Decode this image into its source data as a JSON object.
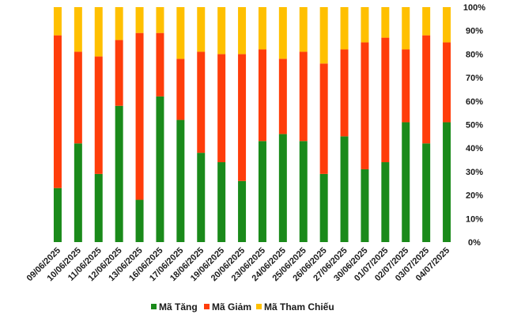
{
  "chart_data": {
    "type": "bar",
    "stacked": true,
    "percent_stacked": true,
    "categories": [
      "09/06/2025",
      "10/06/2025",
      "11/06/2025",
      "12/06/2025",
      "13/06/2025",
      "16/06/2025",
      "17/06/2025",
      "18/06/2025",
      "19/06/2025",
      "20/06/2025",
      "23/06/2025",
      "24/06/2025",
      "25/06/2025",
      "26/06/2025",
      "27/06/2025",
      "30/06/2025",
      "01/07/2025",
      "02/07/2025",
      "03/07/2025",
      "04/07/2025"
    ],
    "series": [
      {
        "name": "Mã Tăng",
        "color": "#1a8a1a",
        "values": [
          23,
          42,
          29,
          58,
          18,
          62,
          52,
          38,
          34,
          26,
          43,
          46,
          43,
          29,
          45,
          31,
          34,
          51,
          42,
          51
        ]
      },
      {
        "name": "Mã Giảm",
        "color": "#ff3d0a",
        "values": [
          65,
          39,
          50,
          28,
          71,
          27,
          26,
          43,
          46,
          54,
          39,
          32,
          38,
          47,
          37,
          54,
          53,
          31,
          46,
          34
        ]
      },
      {
        "name": "Mã Tham Chiếu",
        "color": "#ffc000",
        "values": [
          12,
          19,
          21,
          14,
          11,
          11,
          22,
          19,
          20,
          20,
          18,
          22,
          19,
          24,
          18,
          15,
          13,
          18,
          12,
          15
        ]
      }
    ],
    "y_ticks": [
      "0%",
      "10%",
      "20%",
      "30%",
      "40%",
      "50%",
      "60%",
      "70%",
      "80%",
      "90%",
      "100%"
    ],
    "ylim": [
      0,
      100
    ],
    "grid": false,
    "legend_position": "bottom"
  }
}
